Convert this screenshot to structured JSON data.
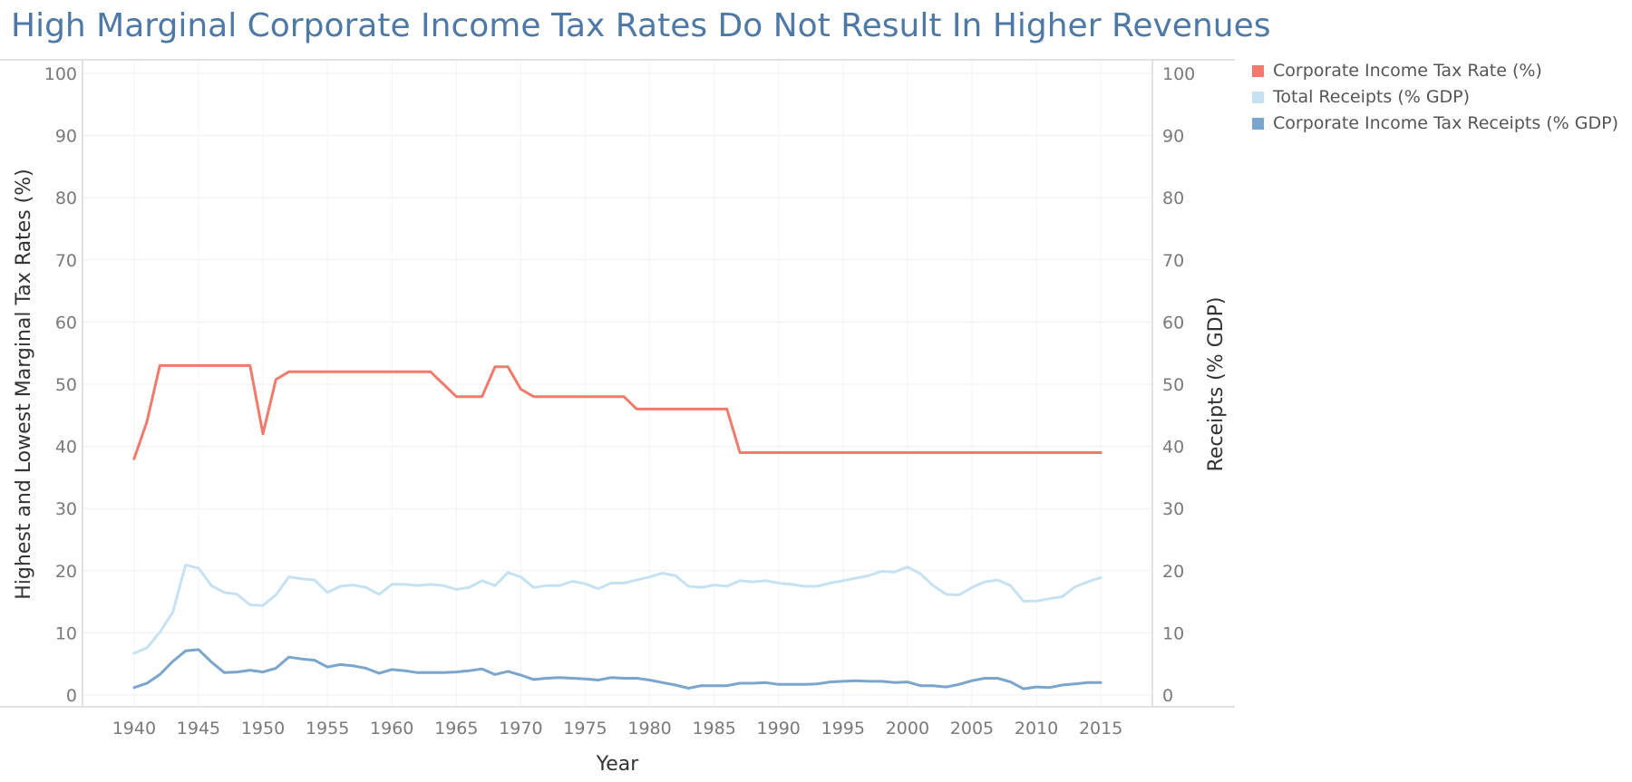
{
  "chart_data": {
    "type": "line",
    "title": "High Marginal Corporate Income Tax Rates Do Not Result In Higher Revenues",
    "xlabel": "Year",
    "ylabel_left": "Highest and Lowest Marginal Tax Rates (%)",
    "ylabel_right": "Receipts (% GDP)",
    "ylim": [
      0,
      100
    ],
    "xlim": [
      1936,
      2019
    ],
    "x_ticks": [
      1940,
      1945,
      1950,
      1955,
      1960,
      1965,
      1970,
      1975,
      1980,
      1985,
      1990,
      1995,
      2000,
      2005,
      2010,
      2015
    ],
    "y_ticks": [
      0,
      10,
      20,
      30,
      40,
      50,
      60,
      70,
      80,
      90,
      100
    ],
    "grid": true,
    "legend_position": "top-right",
    "series": [
      {
        "name": "Corporate Income Tax Rate (%)",
        "color": "#f07b6c",
        "axis": "left",
        "points": [
          [
            1940,
            38
          ],
          [
            1941,
            44
          ],
          [
            1942,
            53
          ],
          [
            1949,
            53
          ],
          [
            1950,
            42
          ],
          [
            1951,
            50.75
          ],
          [
            1952,
            52
          ],
          [
            1963,
            52
          ],
          [
            1964,
            50
          ],
          [
            1965,
            48
          ],
          [
            1967,
            48
          ],
          [
            1968,
            52.8
          ],
          [
            1969,
            52.8
          ],
          [
            1970,
            49.2
          ],
          [
            1971,
            48
          ],
          [
            1978,
            48
          ],
          [
            1979,
            46
          ],
          [
            1986,
            46
          ],
          [
            1987,
            39
          ],
          [
            2015,
            39
          ]
        ]
      },
      {
        "name": "Total Receipts (% GDP)",
        "color": "#c6e2f2",
        "axis": "right",
        "points": [
          [
            1940,
            6.7
          ],
          [
            1941,
            7.6
          ],
          [
            1942,
            10.1
          ],
          [
            1943,
            13.3
          ],
          [
            1944,
            20.9
          ],
          [
            1945,
            20.4
          ],
          [
            1946,
            17.6
          ],
          [
            1947,
            16.5
          ],
          [
            1948,
            16.2
          ],
          [
            1949,
            14.5
          ],
          [
            1950,
            14.4
          ],
          [
            1951,
            16.1
          ],
          [
            1952,
            19.0
          ],
          [
            1953,
            18.7
          ],
          [
            1954,
            18.5
          ],
          [
            1955,
            16.5
          ],
          [
            1956,
            17.5
          ],
          [
            1957,
            17.7
          ],
          [
            1958,
            17.3
          ],
          [
            1959,
            16.2
          ],
          [
            1960,
            17.8
          ],
          [
            1961,
            17.8
          ],
          [
            1962,
            17.6
          ],
          [
            1963,
            17.8
          ],
          [
            1964,
            17.6
          ],
          [
            1965,
            17.0
          ],
          [
            1966,
            17.3
          ],
          [
            1967,
            18.4
          ],
          [
            1968,
            17.6
          ],
          [
            1969,
            19.7
          ],
          [
            1970,
            19.0
          ],
          [
            1971,
            17.3
          ],
          [
            1972,
            17.6
          ],
          [
            1973,
            17.6
          ],
          [
            1974,
            18.3
          ],
          [
            1975,
            17.9
          ],
          [
            1976,
            17.1
          ],
          [
            1977,
            18.0
          ],
          [
            1978,
            18.0
          ],
          [
            1979,
            18.5
          ],
          [
            1980,
            19.0
          ],
          [
            1981,
            19.6
          ],
          [
            1982,
            19.2
          ],
          [
            1983,
            17.5
          ],
          [
            1984,
            17.3
          ],
          [
            1985,
            17.7
          ],
          [
            1986,
            17.5
          ],
          [
            1987,
            18.4
          ],
          [
            1988,
            18.2
          ],
          [
            1989,
            18.4
          ],
          [
            1990,
            18.0
          ],
          [
            1991,
            17.8
          ],
          [
            1992,
            17.5
          ],
          [
            1993,
            17.5
          ],
          [
            1994,
            18.0
          ],
          [
            1995,
            18.4
          ],
          [
            1996,
            18.8
          ],
          [
            1997,
            19.2
          ],
          [
            1998,
            19.9
          ],
          [
            1999,
            19.8
          ],
          [
            2000,
            20.6
          ],
          [
            2001,
            19.5
          ],
          [
            2002,
            17.6
          ],
          [
            2003,
            16.2
          ],
          [
            2004,
            16.1
          ],
          [
            2005,
            17.3
          ],
          [
            2006,
            18.2
          ],
          [
            2007,
            18.5
          ],
          [
            2008,
            17.6
          ],
          [
            2009,
            15.1
          ],
          [
            2010,
            15.1
          ],
          [
            2011,
            15.5
          ],
          [
            2012,
            15.8
          ],
          [
            2013,
            17.4
          ],
          [
            2014,
            18.2
          ],
          [
            2015,
            18.9
          ]
        ]
      },
      {
        "name": "Corporate Income Tax Receipts (% GDP)",
        "color": "#7aa5cc",
        "axis": "right",
        "points": [
          [
            1940,
            1.2
          ],
          [
            1941,
            1.9
          ],
          [
            1942,
            3.3
          ],
          [
            1943,
            5.4
          ],
          [
            1944,
            7.1
          ],
          [
            1945,
            7.3
          ],
          [
            1946,
            5.3
          ],
          [
            1947,
            3.6
          ],
          [
            1948,
            3.7
          ],
          [
            1949,
            4.0
          ],
          [
            1950,
            3.7
          ],
          [
            1951,
            4.3
          ],
          [
            1952,
            6.1
          ],
          [
            1953,
            5.8
          ],
          [
            1954,
            5.6
          ],
          [
            1955,
            4.5
          ],
          [
            1956,
            4.9
          ],
          [
            1957,
            4.7
          ],
          [
            1958,
            4.3
          ],
          [
            1959,
            3.5
          ],
          [
            1960,
            4.1
          ],
          [
            1961,
            3.9
          ],
          [
            1962,
            3.6
          ],
          [
            1963,
            3.6
          ],
          [
            1964,
            3.6
          ],
          [
            1965,
            3.7
          ],
          [
            1966,
            3.9
          ],
          [
            1967,
            4.2
          ],
          [
            1968,
            3.3
          ],
          [
            1969,
            3.8
          ],
          [
            1970,
            3.2
          ],
          [
            1971,
            2.5
          ],
          [
            1972,
            2.7
          ],
          [
            1973,
            2.8
          ],
          [
            1974,
            2.7
          ],
          [
            1975,
            2.6
          ],
          [
            1976,
            2.4
          ],
          [
            1977,
            2.8
          ],
          [
            1978,
            2.7
          ],
          [
            1979,
            2.7
          ],
          [
            1980,
            2.4
          ],
          [
            1981,
            2.0
          ],
          [
            1982,
            1.6
          ],
          [
            1983,
            1.1
          ],
          [
            1984,
            1.5
          ],
          [
            1985,
            1.5
          ],
          [
            1986,
            1.5
          ],
          [
            1987,
            1.9
          ],
          [
            1988,
            1.9
          ],
          [
            1989,
            2.0
          ],
          [
            1990,
            1.7
          ],
          [
            1991,
            1.7
          ],
          [
            1992,
            1.7
          ],
          [
            1993,
            1.8
          ],
          [
            1994,
            2.1
          ],
          [
            1995,
            2.2
          ],
          [
            1996,
            2.3
          ],
          [
            1997,
            2.2
          ],
          [
            1998,
            2.2
          ],
          [
            1999,
            2.0
          ],
          [
            2000,
            2.1
          ],
          [
            2001,
            1.5
          ],
          [
            2002,
            1.5
          ],
          [
            2003,
            1.3
          ],
          [
            2004,
            1.7
          ],
          [
            2005,
            2.3
          ],
          [
            2006,
            2.7
          ],
          [
            2007,
            2.7
          ],
          [
            2008,
            2.1
          ],
          [
            2009,
            1.0
          ],
          [
            2010,
            1.3
          ],
          [
            2011,
            1.2
          ],
          [
            2012,
            1.6
          ],
          [
            2013,
            1.8
          ],
          [
            2014,
            2.0
          ],
          [
            2015,
            2.0
          ]
        ]
      }
    ]
  }
}
